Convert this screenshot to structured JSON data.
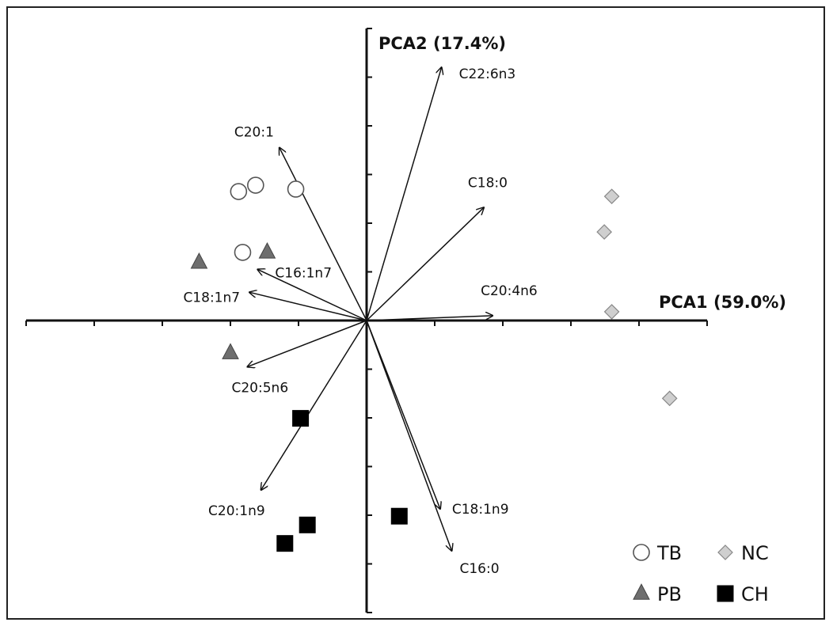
{
  "chart_data": {
    "type": "scatter",
    "title": "",
    "xlabel": "PCA1 (59.0%)",
    "ylabel": "PCA2 (17.4%)",
    "xlim": [
      -5.0,
      5.0
    ],
    "ylim": [
      -6.0,
      6.0
    ],
    "grid": false,
    "legend_position": "bottom-right",
    "series": [
      {
        "name": "TB",
        "marker": "circle",
        "color": "#ffffff",
        "stroke": "#555555",
        "points": [
          {
            "x": -1.88,
            "y": 2.65
          },
          {
            "x": -1.63,
            "y": 2.78
          },
          {
            "x": -1.04,
            "y": 2.7
          },
          {
            "x": -1.82,
            "y": 1.4
          }
        ]
      },
      {
        "name": "PB",
        "marker": "triangle",
        "color": "#6e6e6e",
        "stroke": "#444444",
        "points": [
          {
            "x": -2.46,
            "y": 1.19
          },
          {
            "x": -1.46,
            "y": 1.4
          },
          {
            "x": -2.0,
            "y": -0.67
          }
        ]
      },
      {
        "name": "NC",
        "marker": "diamond",
        "color": "#cfcfcf",
        "stroke": "#888888",
        "points": [
          {
            "x": 3.6,
            "y": 2.55
          },
          {
            "x": 3.49,
            "y": 1.82
          },
          {
            "x": 3.6,
            "y": 0.18
          },
          {
            "x": 4.45,
            "y": -1.6
          }
        ]
      },
      {
        "name": "CH",
        "marker": "square",
        "color": "#000000",
        "stroke": "#000000",
        "points": [
          {
            "x": -0.97,
            "y": -2.01
          },
          {
            "x": -0.87,
            "y": -4.2
          },
          {
            "x": -1.2,
            "y": -4.58
          },
          {
            "x": 0.48,
            "y": -4.02
          }
        ]
      }
    ],
    "vectors": [
      {
        "label": "C22:6n3",
        "x": 1.1,
        "y": 5.2
      },
      {
        "label": "C20:1",
        "x": -1.28,
        "y": 3.55
      },
      {
        "label": "C18:0",
        "x": 1.72,
        "y": 2.32
      },
      {
        "label": "C16:1n7",
        "x": -1.6,
        "y": 1.05
      },
      {
        "label": "C18:1n7",
        "x": -1.72,
        "y": 0.58
      },
      {
        "label": "C20:4n6",
        "x": 1.85,
        "y": 0.1
      },
      {
        "label": "C20:5n6",
        "x": -1.75,
        "y": -0.95
      },
      {
        "label": "C20:1n9",
        "x": -1.55,
        "y": -3.48
      },
      {
        "label": "C18:1n9",
        "x": 1.08,
        "y": -3.87
      },
      {
        "label": "C16:0",
        "x": 1.25,
        "y": -4.73
      }
    ]
  }
}
